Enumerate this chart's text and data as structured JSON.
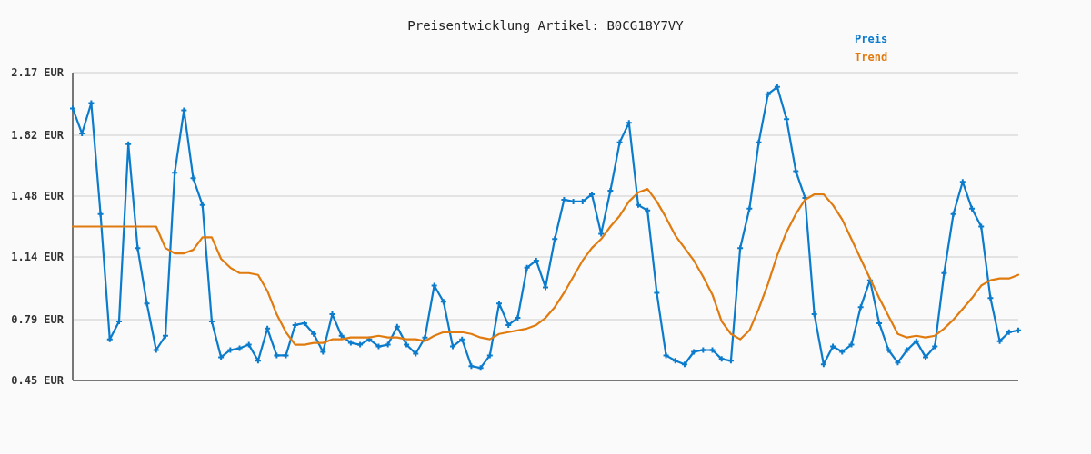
{
  "chart_data": {
    "type": "line",
    "title": "Preisentwicklung Artikel: B0CG18Y7VY",
    "categories": [
      null,
      null,
      null,
      null,
      null,
      null,
      null,
      null,
      null,
      null,
      null,
      null,
      null,
      null,
      null,
      null,
      null,
      null,
      null,
      null,
      null,
      null,
      null,
      null,
      null,
      null,
      null,
      null,
      null,
      null,
      null,
      null,
      null,
      null,
      null,
      null,
      null,
      null,
      null,
      null,
      null,
      null,
      null,
      null,
      null,
      null,
      null,
      null,
      null,
      null,
      null,
      null,
      null,
      null,
      null,
      null,
      null,
      null,
      null,
      null,
      null,
      null,
      null,
      null,
      null,
      null,
      null,
      null,
      null,
      null,
      null,
      null,
      null,
      null,
      null,
      null,
      null,
      null,
      null,
      null,
      null,
      null,
      null,
      null,
      null,
      null,
      null,
      null,
      null,
      null,
      null,
      null,
      null,
      null,
      null,
      null,
      null,
      null,
      null,
      null,
      null,
      null,
      null
    ],
    "series": [
      {
        "name": "Preis",
        "color": "#0b7bcc",
        "marker": "cross",
        "values": [
          1.97,
          1.83,
          2.0,
          1.38,
          0.68,
          0.78,
          1.77,
          1.19,
          0.88,
          0.62,
          0.7,
          1.61,
          1.96,
          1.58,
          1.43,
          0.78,
          0.58,
          0.62,
          0.63,
          0.65,
          0.56,
          0.74,
          0.59,
          0.59,
          0.76,
          0.77,
          0.71,
          0.61,
          0.82,
          0.7,
          0.66,
          0.65,
          0.68,
          0.64,
          0.65,
          0.75,
          0.65,
          0.6,
          0.69,
          0.98,
          0.89,
          0.64,
          0.68,
          0.53,
          0.52,
          0.59,
          0.88,
          0.76,
          0.8,
          1.08,
          1.12,
          0.97,
          1.24,
          1.46,
          1.45,
          1.45,
          1.49,
          1.27,
          1.51,
          1.78,
          1.89,
          1.43,
          1.4,
          0.94,
          0.59,
          0.56,
          0.54,
          0.61,
          0.62,
          0.62,
          0.57,
          0.56,
          1.19,
          1.41,
          1.78,
          2.05,
          2.09,
          1.91,
          1.62,
          1.47,
          0.82,
          0.54,
          0.64,
          0.61,
          0.65,
          0.86,
          1.01,
          0.77,
          0.62,
          0.55,
          0.62,
          0.67,
          0.58,
          0.64,
          1.05,
          1.38,
          1.56,
          1.41,
          1.31,
          0.91,
          0.67,
          0.72,
          0.73
        ]
      },
      {
        "name": "Trend",
        "color": "#e07b10",
        "marker": "none",
        "values": [
          1.31,
          1.31,
          1.31,
          1.31,
          1.31,
          1.31,
          1.31,
          1.31,
          1.31,
          1.31,
          1.19,
          1.16,
          1.16,
          1.18,
          1.25,
          1.25,
          1.13,
          1.08,
          1.05,
          1.05,
          1.04,
          0.95,
          0.82,
          0.72,
          0.65,
          0.65,
          0.66,
          0.66,
          0.68,
          0.68,
          0.69,
          0.69,
          0.69,
          0.7,
          0.69,
          0.69,
          0.68,
          0.68,
          0.67,
          0.7,
          0.72,
          0.72,
          0.72,
          0.71,
          0.69,
          0.68,
          0.71,
          0.72,
          0.73,
          0.74,
          0.76,
          0.8,
          0.86,
          0.94,
          1.03,
          1.12,
          1.19,
          1.24,
          1.31,
          1.37,
          1.45,
          1.5,
          1.52,
          1.45,
          1.36,
          1.26,
          1.19,
          1.12,
          1.03,
          0.93,
          0.78,
          0.71,
          0.68,
          0.73,
          0.85,
          0.99,
          1.15,
          1.28,
          1.38,
          1.46,
          1.49,
          1.49,
          1.43,
          1.35,
          1.24,
          1.13,
          1.02,
          0.91,
          0.81,
          0.71,
          0.69,
          0.7,
          0.69,
          0.7,
          0.74,
          0.79,
          0.85,
          0.91,
          0.98,
          1.01,
          1.02,
          1.02,
          1.04
        ]
      }
    ],
    "ylim": [
      0.45,
      2.17
    ],
    "yticks": [
      {
        "value": 0.45,
        "label": "0.45 EUR"
      },
      {
        "value": 0.79,
        "label": "0.79 EUR"
      },
      {
        "value": 1.14,
        "label": "1.14 EUR"
      },
      {
        "value": 1.48,
        "label": "1.48 EUR"
      },
      {
        "value": 1.82,
        "label": "1.82 EUR"
      },
      {
        "value": 2.17,
        "label": "2.17 EUR"
      }
    ],
    "grid": "y",
    "legend": "top right",
    "line_style": "solid"
  }
}
